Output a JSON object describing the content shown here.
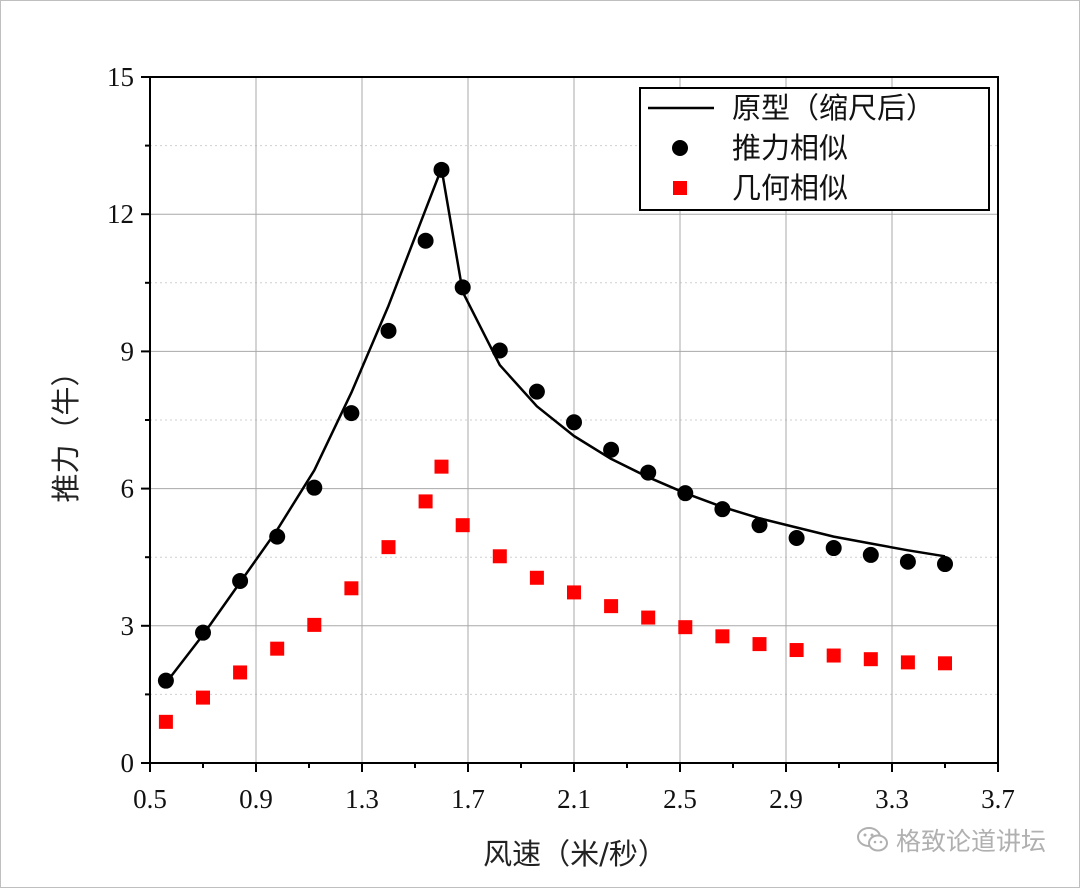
{
  "chart_data": {
    "type": "line+scatter",
    "xlabel": "风速（米/秒）",
    "ylabel": "推力（牛）",
    "xlim": [
      0.5,
      3.7
    ],
    "ylim": [
      0,
      15
    ],
    "x_ticks": [
      "0.5",
      "0.9",
      "1.3",
      "1.7",
      "2.1",
      "2.5",
      "2.9",
      "3.3",
      "3.7"
    ],
    "y_ticks": [
      "0",
      "3",
      "6",
      "9",
      "12",
      "15"
    ],
    "grid": true,
    "legend_position": "top-right",
    "series": [
      {
        "name": "原型（缩尺后）",
        "style": "line",
        "color": "#000000",
        "x": [
          0.56,
          0.7,
          0.84,
          0.98,
          1.12,
          1.26,
          1.4,
          1.54,
          1.6,
          1.68,
          1.82,
          1.96,
          2.1,
          2.24,
          2.38,
          2.52,
          2.66,
          2.8,
          2.94,
          3.08,
          3.22,
          3.36,
          3.5
        ],
        "y": [
          1.75,
          2.8,
          3.95,
          5.1,
          6.4,
          8.1,
          10.0,
          12.1,
          13.0,
          10.3,
          8.7,
          7.8,
          7.15,
          6.65,
          6.25,
          5.9,
          5.6,
          5.35,
          5.15,
          4.95,
          4.8,
          4.65,
          4.52
        ]
      },
      {
        "name": "推力相似",
        "style": "scatter-circle",
        "color": "#000000",
        "x": [
          0.56,
          0.7,
          0.84,
          0.98,
          1.12,
          1.26,
          1.4,
          1.54,
          1.6,
          1.68,
          1.82,
          1.96,
          2.1,
          2.24,
          2.38,
          2.52,
          2.66,
          2.8,
          2.94,
          3.08,
          3.22,
          3.36,
          3.5
        ],
        "y": [
          1.8,
          2.85,
          3.98,
          4.95,
          6.02,
          7.65,
          9.45,
          11.42,
          12.97,
          10.4,
          9.02,
          8.12,
          7.45,
          6.85,
          6.35,
          5.9,
          5.55,
          5.2,
          4.92,
          4.7,
          4.55,
          4.4,
          4.35
        ]
      },
      {
        "name": "几何相似",
        "style": "scatter-square",
        "color": "#ff0000",
        "x": [
          0.56,
          0.7,
          0.84,
          0.98,
          1.12,
          1.26,
          1.4,
          1.54,
          1.6,
          1.68,
          1.82,
          1.96,
          2.1,
          2.24,
          2.38,
          2.52,
          2.66,
          2.8,
          2.94,
          3.08,
          3.22,
          3.36,
          3.5
        ],
        "y": [
          0.9,
          1.43,
          1.98,
          2.5,
          3.02,
          3.82,
          4.72,
          5.72,
          6.48,
          5.2,
          4.52,
          4.05,
          3.73,
          3.43,
          3.18,
          2.97,
          2.77,
          2.6,
          2.47,
          2.35,
          2.27,
          2.2,
          2.18
        ]
      }
    ]
  },
  "watermark": {
    "text": "格致论道讲坛",
    "icon": "wechat-icon"
  }
}
